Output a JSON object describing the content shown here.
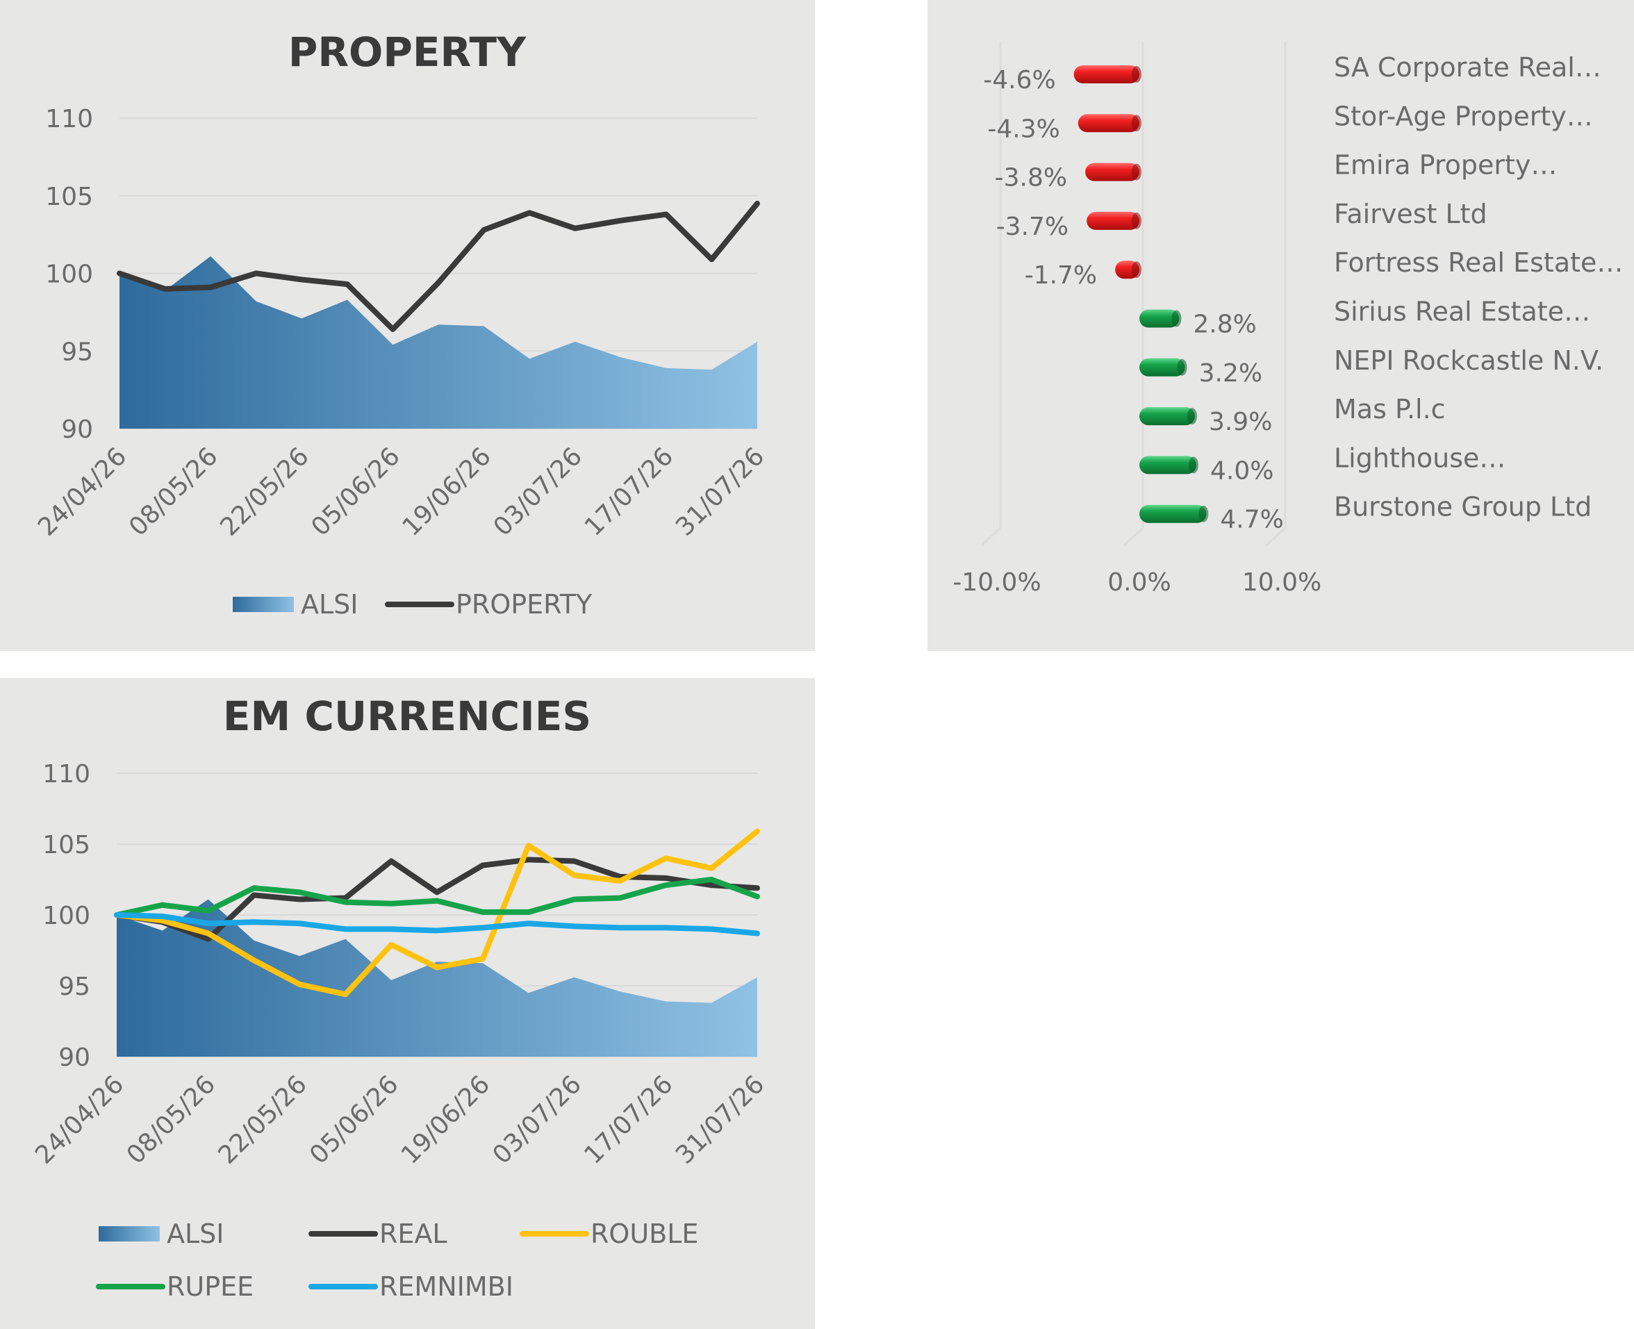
{
  "chart_data": [
    {
      "id": "property",
      "type": "area+line",
      "title": "PROPERTY",
      "ylim": [
        90,
        110
      ],
      "yticks": [
        "110",
        "105",
        "100",
        "95",
        "90"
      ],
      "x_tick_labels": [
        "24/04/26",
        "08/05/26",
        "22/05/26",
        "05/06/26",
        "19/06/26",
        "03/07/26",
        "17/07/26",
        "31/07/26"
      ],
      "x": [
        "24/04/26",
        "01/05/26",
        "08/05/26",
        "15/05/26",
        "22/05/26",
        "29/05/26",
        "05/06/26",
        "12/06/26",
        "19/06/26",
        "26/06/26",
        "03/07/26",
        "10/07/26",
        "17/07/26",
        "24/07/26",
        "31/07/26"
      ],
      "grid": true,
      "legend": "bottom",
      "series": [
        {
          "name": "ALSI",
          "kind": "area",
          "color": "#2e6b9c",
          "color_end": "#8fc2e4",
          "values": [
            100,
            98.9,
            101.1,
            98.2,
            97.1,
            98.3,
            95.4,
            96.7,
            96.6,
            94.5,
            95.6,
            94.6,
            93.9,
            93.8,
            95.6
          ]
        },
        {
          "name": "PROPERTY",
          "kind": "line",
          "color": "#3a3a3a",
          "values": [
            100,
            99.0,
            99.1,
            100.0,
            99.6,
            99.3,
            96.4,
            99.4,
            102.8,
            103.9,
            102.9,
            103.4,
            103.8,
            100.9,
            104.5
          ]
        }
      ]
    },
    {
      "id": "movers",
      "type": "bar",
      "orientation": "horizontal",
      "xlim": [
        -10,
        10
      ],
      "x_tick_labels": [
        "-10.0%",
        "0.0%",
        "10.0%"
      ],
      "categories": [
        "SA Corporate Real…",
        "Stor-Age Property…",
        "Emira Property…",
        "Fairvest Ltd",
        "Fortress Real Estate…",
        "Sirius Real Estate…",
        "NEPI Rockcastle N.V.",
        "Mas P.l.c",
        "Lighthouse…",
        "Burstone Group Ltd"
      ],
      "values": [
        -4.6,
        -4.3,
        -3.8,
        -3.7,
        -1.7,
        2.8,
        3.2,
        3.9,
        4.0,
        4.7
      ],
      "value_labels": [
        "-4.6%",
        "-4.3%",
        "-3.8%",
        "-3.7%",
        "-1.7%",
        "2.8%",
        "3.2%",
        "3.9%",
        "4.0%",
        "4.7%"
      ],
      "colors": {
        "negative": "#e31b1b",
        "positive": "#16a44a"
      }
    },
    {
      "id": "em-currencies",
      "type": "area+line",
      "title": "EM CURRENCIES",
      "ylim": [
        90,
        110
      ],
      "yticks": [
        "110",
        "105",
        "100",
        "95",
        "90"
      ],
      "x_tick_labels": [
        "24/04/26",
        "08/05/26",
        "22/05/26",
        "05/06/26",
        "19/06/26",
        "03/07/26",
        "17/07/26",
        "31/07/26"
      ],
      "x": [
        "24/04/26",
        "01/05/26",
        "08/05/26",
        "15/05/26",
        "22/05/26",
        "29/05/26",
        "05/06/26",
        "12/06/26",
        "19/06/26",
        "26/06/26",
        "03/07/26",
        "10/07/26",
        "17/07/26",
        "24/07/26",
        "31/07/26"
      ],
      "grid": true,
      "legend": "bottom",
      "series": [
        {
          "name": "ALSI",
          "kind": "area",
          "color": "#2e6b9c",
          "color_end": "#8fc2e4",
          "values": [
            100,
            98.9,
            101.1,
            98.2,
            97.1,
            98.3,
            95.4,
            96.7,
            96.6,
            94.5,
            95.6,
            94.6,
            93.9,
            93.8,
            95.6
          ]
        },
        {
          "name": "REAL",
          "kind": "line",
          "color": "#3a3a3a",
          "values": [
            100,
            99.5,
            98.3,
            101.4,
            101.1,
            101.2,
            103.8,
            101.6,
            103.5,
            103.9,
            103.8,
            102.7,
            102.6,
            102.1,
            101.9
          ]
        },
        {
          "name": "ROUBLE",
          "kind": "line",
          "color": "#ffc20e",
          "values": [
            100,
            99.6,
            98.7,
            96.8,
            95.1,
            94.4,
            97.9,
            96.3,
            96.9,
            104.9,
            102.8,
            102.4,
            104.0,
            103.3,
            105.9
          ]
        },
        {
          "name": "RUPEE",
          "kind": "line",
          "color": "#16a44a",
          "values": [
            100,
            100.7,
            100.3,
            101.9,
            101.6,
            100.9,
            100.8,
            101.0,
            100.2,
            100.2,
            101.1,
            101.2,
            102.1,
            102.5,
            101.3
          ]
        },
        {
          "name": "REMNIMBI",
          "kind": "line",
          "color": "#1aa7e6",
          "values": [
            100,
            99.9,
            99.4,
            99.5,
            99.4,
            99.0,
            99.0,
            98.9,
            99.1,
            99.4,
            99.2,
            99.1,
            99.1,
            99.0,
            98.7
          ]
        }
      ]
    }
  ]
}
